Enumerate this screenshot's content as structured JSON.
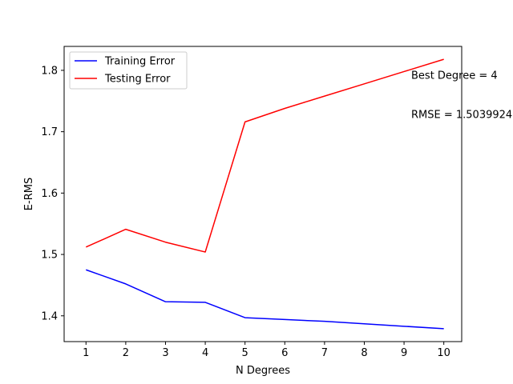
{
  "chart_data": {
    "type": "line",
    "xlabel": "N Degrees",
    "ylabel": "E-RMS",
    "x": [
      1,
      2,
      3,
      4,
      5,
      6,
      7,
      8,
      9,
      10
    ],
    "xlim": [
      0.45,
      10.45
    ],
    "ylim": [
      1.358,
      1.839
    ],
    "xticks": [
      1,
      2,
      3,
      4,
      5,
      6,
      7,
      8,
      9,
      10
    ],
    "yticks": [
      "1.4",
      "1.5",
      "1.6",
      "1.7",
      "1.8"
    ],
    "series": [
      {
        "name": "Training Error",
        "color": "#0000ff",
        "values": [
          1.475,
          1.452,
          1.423,
          1.422,
          1.397,
          1.394,
          1.391,
          1.387,
          1.383,
          1.379
        ]
      },
      {
        "name": "Testing Error",
        "color": "#ff0000",
        "values": [
          1.512,
          1.541,
          1.52,
          1.504,
          1.716,
          1.738,
          1.758,
          1.778,
          1.798,
          1.818
        ]
      }
    ],
    "legend_position": "top-left",
    "grid": false,
    "annotations": [
      {
        "text": "Best Degree = 4",
        "x": 9.18,
        "y": 1.792
      },
      {
        "text": "RMSE = 1.5039924",
        "x": 9.18,
        "y": 1.728
      }
    ]
  }
}
